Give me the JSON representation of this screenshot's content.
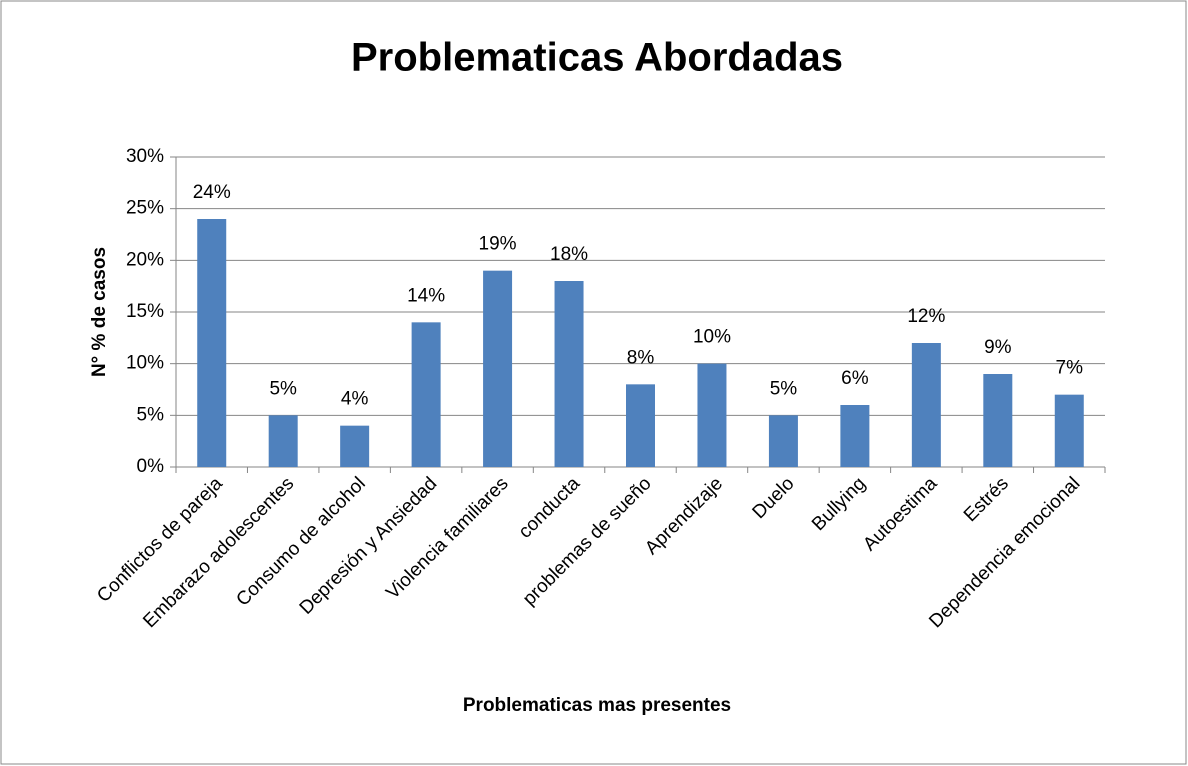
{
  "chart_data": {
    "type": "bar",
    "title": "Problematicas Abordadas",
    "x_label": "Problematicas  mas presentes",
    "y_label": "N° % de casos",
    "categories": [
      "Conflictos de pareja",
      "Embarazo adolescentes",
      "Consumo de alcohol",
      "Depresión y Ansiedad",
      "Violencia familiares",
      "conducta",
      "problemas de sueño",
      "Aprendizaje",
      "Duelo",
      "Bullying",
      "Autoestima",
      "Estrés",
      "Dependencia emocional"
    ],
    "values": [
      24,
      5,
      4,
      14,
      19,
      18,
      8,
      10,
      5,
      6,
      12,
      9,
      7
    ],
    "value_labels": [
      "24%",
      "5%",
      "4%",
      "14%",
      "19%",
      "18%",
      "8%",
      "10%",
      "5%",
      "6%",
      "12%",
      "9%",
      "7%"
    ],
    "color": "#4f81bd",
    "ylim": [
      0,
      30
    ],
    "yticks": [
      {
        "value": 0,
        "label": "0%"
      },
      {
        "value": 5,
        "label": "5%"
      },
      {
        "value": 10,
        "label": "10%"
      },
      {
        "value": 15,
        "label": "15%"
      },
      {
        "value": 20,
        "label": "20%"
      },
      {
        "value": 25,
        "label": "25%"
      },
      {
        "value": 30,
        "label": "30%"
      }
    ],
    "grid": true
  }
}
